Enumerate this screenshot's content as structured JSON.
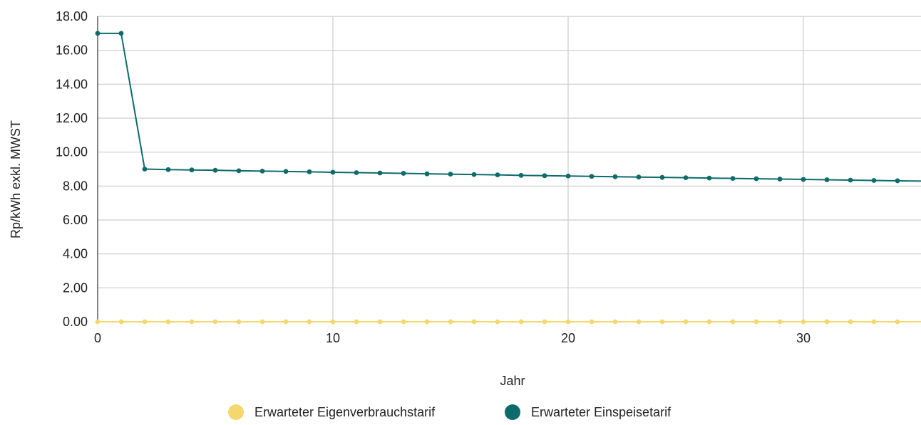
{
  "chart_data": {
    "type": "line",
    "xlabel": "Jahr",
    "ylabel": "Rp/kWh exkl. MWST",
    "xlim": [
      0,
      35
    ],
    "ylim": [
      0,
      18
    ],
    "x_ticks": [
      0,
      10,
      20,
      30
    ],
    "y_ticks": [
      "0.00",
      "2.00",
      "4.00",
      "6.00",
      "8.00",
      "10.00",
      "12.00",
      "14.00",
      "16.00",
      "18.00"
    ],
    "grid": true,
    "legend_position": "bottom",
    "x": [
      0,
      1,
      2,
      3,
      4,
      5,
      6,
      7,
      8,
      9,
      10,
      11,
      12,
      13,
      14,
      15,
      16,
      17,
      18,
      19,
      20,
      21,
      22,
      23,
      24,
      25,
      26,
      27,
      28,
      29,
      30,
      31,
      32,
      33,
      34,
      35
    ],
    "series": [
      {
        "name": "Erwarteter Eigenverbrauchstarif",
        "color": "#f5d76e",
        "values": [
          0,
          0,
          0,
          0,
          0,
          0,
          0,
          0,
          0,
          0,
          0,
          0,
          0,
          0,
          0,
          0,
          0,
          0,
          0,
          0,
          0,
          0,
          0,
          0,
          0,
          0,
          0,
          0,
          0,
          0,
          0,
          0,
          0,
          0,
          0,
          0
        ]
      },
      {
        "name": "Erwarteter Einspeisetarif",
        "color": "#0e6b6b",
        "values": [
          17.0,
          17.0,
          9.0,
          8.97,
          8.95,
          8.93,
          8.9,
          8.88,
          8.86,
          8.84,
          8.81,
          8.79,
          8.77,
          8.75,
          8.72,
          8.7,
          8.68,
          8.66,
          8.63,
          8.61,
          8.59,
          8.57,
          8.55,
          8.53,
          8.51,
          8.49,
          8.47,
          8.45,
          8.43,
          8.41,
          8.39,
          8.37,
          8.35,
          8.33,
          8.31,
          8.29
        ]
      }
    ]
  }
}
